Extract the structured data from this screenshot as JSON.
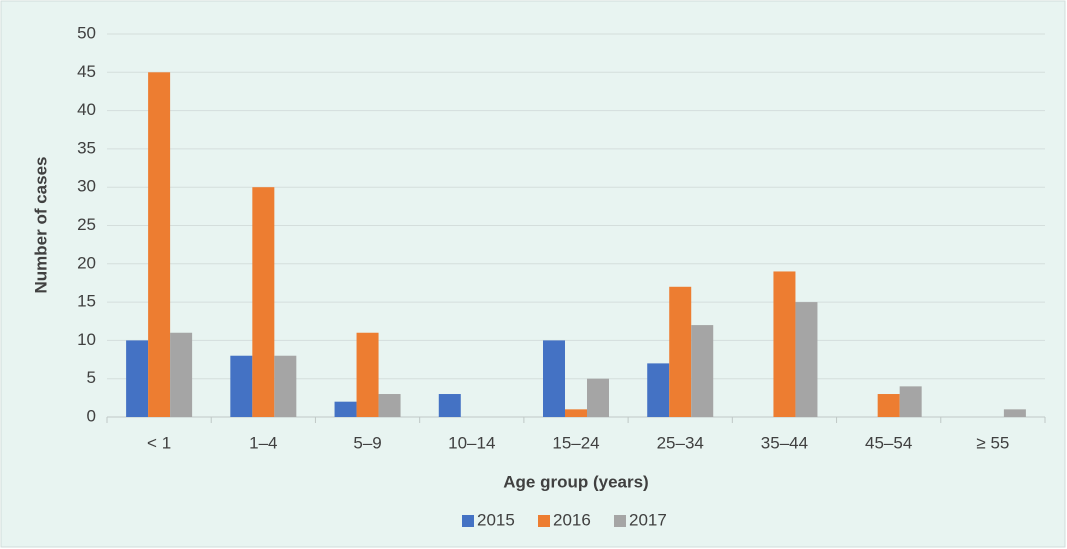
{
  "chart_data": {
    "type": "bar",
    "x_label": "Age group (years)",
    "y_label": "Number of cases",
    "categories": [
      "< 1",
      "1–4",
      "5–9",
      "10–14",
      "15–24",
      "25–34",
      "35–44",
      "45–54",
      "≥ 55"
    ],
    "series": [
      {
        "name": "2015",
        "color": "#4472c4",
        "values": [
          10,
          8,
          2,
          3,
          10,
          7,
          0,
          0,
          0
        ]
      },
      {
        "name": "2016",
        "color": "#ed7d31",
        "values": [
          45,
          30,
          11,
          0,
          1,
          17,
          19,
          3,
          0
        ]
      },
      {
        "name": "2017",
        "color": "#a5a5a5",
        "values": [
          11,
          8,
          3,
          0,
          5,
          12,
          15,
          4,
          1
        ]
      }
    ],
    "ylim": [
      0,
      50
    ],
    "yticks": [
      0,
      5,
      10,
      15,
      20,
      25,
      30,
      35,
      40,
      45,
      50
    ],
    "grid": true,
    "legend": "bottom"
  }
}
